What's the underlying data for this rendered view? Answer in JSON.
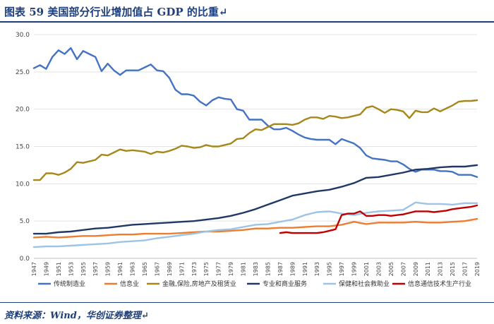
{
  "header": {
    "title": "图表 59   美国部分行业增加值占 GDP 的比重↵"
  },
  "footer": {
    "source": "资料来源：Wind，华创证券整理↵"
  },
  "chart_data": {
    "type": "line",
    "title": "",
    "xlabel": "",
    "ylabel": "",
    "ylim": [
      0,
      30
    ],
    "yticks": [
      "0.0",
      "5.0",
      "10.0",
      "15.0",
      "20.0",
      "25.0",
      "30.0"
    ],
    "xrange": [
      1947,
      2019
    ],
    "xticks": [
      1947,
      1949,
      1951,
      1953,
      1955,
      1957,
      1959,
      1961,
      1963,
      1965,
      1967,
      1969,
      1971,
      1973,
      1975,
      1977,
      1979,
      1981,
      1983,
      1985,
      1987,
      1989,
      1991,
      1993,
      1995,
      1997,
      1999,
      2001,
      2003,
      2005,
      2007,
      2009,
      2011,
      2013,
      2015,
      2017,
      2019
    ],
    "grid": "horizontal",
    "legend_position": "bottom",
    "series": [
      {
        "name": "传统制造业",
        "color": "#4472c4",
        "x": [
          1947,
          1948,
          1949,
          1950,
          1951,
          1952,
          1953,
          1954,
          1955,
          1956,
          1957,
          1958,
          1959,
          1960,
          1961,
          1962,
          1963,
          1964,
          1965,
          1966,
          1967,
          1968,
          1969,
          1970,
          1971,
          1972,
          1973,
          1974,
          1975,
          1976,
          1977,
          1978,
          1979,
          1980,
          1981,
          1982,
          1983,
          1984,
          1985,
          1986,
          1987,
          1988,
          1989,
          1990,
          1991,
          1992,
          1993,
          1994,
          1995,
          1996,
          1997,
          1998,
          1999,
          2000,
          2001,
          2002,
          2003,
          2004,
          2005,
          2006,
          2007,
          2008,
          2009,
          2010,
          2011,
          2012,
          2013,
          2014,
          2015,
          2016,
          2017,
          2018,
          2019
        ],
        "y": [
          25.5,
          25.9,
          25.4,
          27.0,
          27.9,
          27.4,
          28.2,
          26.7,
          27.8,
          27.4,
          27.0,
          25.1,
          26.1,
          25.2,
          24.6,
          25.2,
          25.2,
          25.2,
          25.6,
          26.0,
          25.2,
          25.1,
          24.2,
          22.6,
          22.0,
          22.0,
          21.8,
          21.0,
          20.5,
          21.2,
          21.6,
          21.4,
          21.3,
          20.0,
          19.8,
          18.6,
          18.6,
          18.6,
          17.8,
          17.3,
          17.3,
          17.5,
          17.1,
          16.6,
          16.2,
          16.0,
          15.9,
          15.9,
          15.9,
          15.3,
          16.0,
          15.7,
          15.4,
          14.8,
          13.8,
          13.4,
          13.3,
          13.2,
          13.0,
          13.0,
          12.6,
          12.0,
          11.6,
          11.9,
          11.9,
          11.9,
          11.7,
          11.7,
          11.6,
          11.2,
          11.2,
          11.2,
          10.9
        ]
      },
      {
        "name": "信息业",
        "color": "#ed7d31",
        "x": [
          1947,
          1949,
          1951,
          1953,
          1955,
          1957,
          1959,
          1961,
          1963,
          1965,
          1967,
          1969,
          1971,
          1973,
          1975,
          1977,
          1979,
          1981,
          1983,
          1985,
          1987,
          1989,
          1991,
          1993,
          1995,
          1997,
          1999,
          2001,
          2003,
          2005,
          2007,
          2009,
          2011,
          2013,
          2015,
          2017,
          2019
        ],
        "y": [
          2.8,
          2.9,
          2.8,
          2.9,
          3.0,
          3.0,
          3.1,
          3.2,
          3.2,
          3.3,
          3.3,
          3.3,
          3.4,
          3.5,
          3.6,
          3.6,
          3.7,
          3.8,
          4.0,
          4.0,
          4.1,
          4.1,
          4.2,
          4.3,
          4.3,
          4.5,
          4.9,
          4.6,
          4.8,
          4.8,
          4.8,
          4.9,
          4.8,
          4.8,
          4.9,
          5.0,
          5.3
        ]
      },
      {
        "name": "金融,保险,房地产及租赁业",
        "color": "#a5871a",
        "x": [
          1947,
          1948,
          1949,
          1950,
          1951,
          1952,
          1953,
          1954,
          1955,
          1956,
          1957,
          1958,
          1959,
          1960,
          1961,
          1962,
          1963,
          1964,
          1965,
          1966,
          1967,
          1968,
          1969,
          1970,
          1971,
          1972,
          1973,
          1974,
          1975,
          1976,
          1977,
          1978,
          1979,
          1980,
          1981,
          1982,
          1983,
          1984,
          1985,
          1986,
          1987,
          1988,
          1989,
          1990,
          1991,
          1992,
          1993,
          1994,
          1995,
          1996,
          1997,
          1998,
          1999,
          2000,
          2001,
          2002,
          2003,
          2004,
          2005,
          2006,
          2007,
          2008,
          2009,
          2010,
          2011,
          2012,
          2013,
          2014,
          2015,
          2016,
          2017,
          2018,
          2019
        ],
        "y": [
          10.5,
          10.5,
          11.4,
          11.4,
          11.2,
          11.5,
          12.0,
          12.9,
          12.8,
          13.0,
          13.2,
          13.9,
          13.8,
          14.2,
          14.6,
          14.4,
          14.5,
          14.4,
          14.3,
          14.0,
          14.3,
          14.2,
          14.4,
          14.7,
          15.1,
          15.0,
          14.8,
          14.9,
          15.2,
          15.0,
          15.0,
          15.2,
          15.4,
          16.0,
          16.1,
          16.8,
          17.3,
          17.2,
          17.6,
          18.0,
          18.0,
          18.0,
          17.9,
          18.1,
          18.6,
          18.9,
          18.9,
          18.7,
          19.1,
          19.0,
          18.8,
          18.9,
          19.1,
          19.3,
          20.2,
          20.4,
          20.0,
          19.5,
          20.0,
          19.9,
          19.7,
          18.8,
          19.8,
          19.6,
          19.6,
          20.1,
          19.7,
          20.1,
          20.5,
          21.0,
          21.1,
          21.1,
          21.2
        ]
      },
      {
        "name": "专业和商业服务",
        "color": "#1f3864",
        "x": [
          1947,
          1949,
          1951,
          1953,
          1955,
          1957,
          1959,
          1961,
          1963,
          1965,
          1967,
          1969,
          1971,
          1973,
          1975,
          1977,
          1979,
          1981,
          1983,
          1985,
          1987,
          1989,
          1991,
          1993,
          1995,
          1997,
          1999,
          2001,
          2003,
          2005,
          2007,
          2009,
          2011,
          2013,
          2015,
          2017,
          2019
        ],
        "y": [
          3.3,
          3.3,
          3.5,
          3.6,
          3.8,
          4.0,
          4.1,
          4.3,
          4.5,
          4.6,
          4.7,
          4.8,
          4.9,
          5.0,
          5.2,
          5.4,
          5.7,
          6.1,
          6.6,
          7.2,
          7.8,
          8.4,
          8.7,
          9.0,
          9.2,
          9.6,
          10.1,
          10.8,
          10.9,
          11.2,
          11.5,
          11.9,
          12.0,
          12.2,
          12.3,
          12.3,
          12.5
        ]
      },
      {
        "name": "保健和社会救助业",
        "color": "#9dc3e6",
        "x": [
          1947,
          1949,
          1951,
          1953,
          1955,
          1957,
          1959,
          1961,
          1963,
          1965,
          1967,
          1969,
          1971,
          1973,
          1975,
          1977,
          1979,
          1981,
          1983,
          1985,
          1987,
          1989,
          1991,
          1993,
          1995,
          1997,
          1999,
          2001,
          2003,
          2005,
          2007,
          2009,
          2011,
          2013,
          2015,
          2017,
          2019
        ],
        "y": [
          1.5,
          1.6,
          1.6,
          1.7,
          1.8,
          1.9,
          2.0,
          2.2,
          2.3,
          2.4,
          2.7,
          2.9,
          3.1,
          3.3,
          3.6,
          3.8,
          3.9,
          4.2,
          4.5,
          4.6,
          4.9,
          5.2,
          5.8,
          6.2,
          6.3,
          6.0,
          5.8,
          6.1,
          6.3,
          6.4,
          6.5,
          7.5,
          7.3,
          7.3,
          7.2,
          7.4,
          7.4
        ]
      },
      {
        "name": "信息通信技术生产行业",
        "color": "#c00000",
        "x": [
          1987,
          1988,
          1989,
          1990,
          1991,
          1992,
          1993,
          1994,
          1995,
          1996,
          1997,
          1998,
          1999,
          2000,
          2001,
          2002,
          2003,
          2004,
          2005,
          2006,
          2007,
          2008,
          2009,
          2010,
          2011,
          2012,
          2013,
          2014,
          2015,
          2016,
          2017,
          2018,
          2019
        ],
        "y": [
          3.4,
          3.5,
          3.4,
          3.4,
          3.4,
          3.4,
          3.4,
          3.5,
          3.7,
          3.9,
          5.8,
          6.0,
          6.0,
          6.3,
          5.7,
          5.7,
          5.8,
          5.8,
          5.7,
          5.8,
          5.9,
          6.1,
          6.3,
          6.3,
          6.3,
          6.2,
          6.3,
          6.4,
          6.6,
          6.7,
          6.8,
          6.9,
          7.1
        ]
      }
    ]
  }
}
